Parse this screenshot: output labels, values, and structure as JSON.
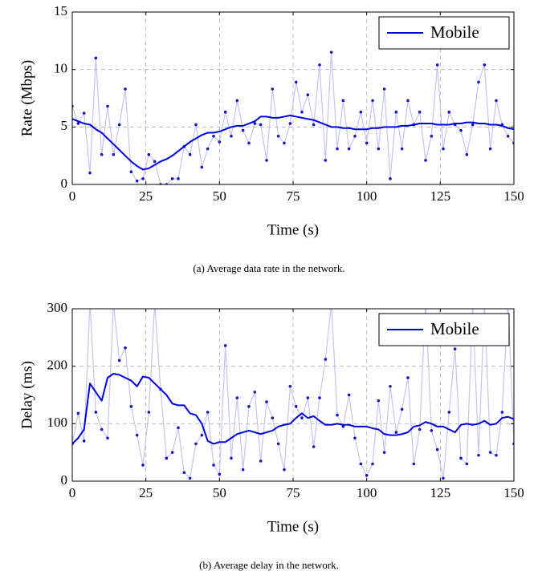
{
  "chart_data": [
    {
      "type": "line",
      "caption": "(a) Average data rate in the network.",
      "xlabel": "Time (s)",
      "ylabel": "Rate (Mbps)",
      "x": [
        0,
        2,
        4,
        6,
        8,
        10,
        12,
        14,
        16,
        18,
        20,
        22,
        24,
        26,
        28,
        30,
        32,
        34,
        36,
        38,
        40,
        42,
        44,
        46,
        48,
        50,
        52,
        54,
        56,
        58,
        60,
        62,
        64,
        66,
        68,
        70,
        72,
        74,
        76,
        78,
        80,
        82,
        84,
        86,
        88,
        90,
        92,
        94,
        96,
        98,
        100,
        102,
        104,
        106,
        108,
        110,
        112,
        114,
        116,
        118,
        120,
        122,
        124,
        126,
        128,
        130,
        132,
        134,
        136,
        138,
        140,
        142,
        144,
        146,
        148,
        150
      ],
      "series": [
        {
          "color": "#c4c4ee",
          "marker_color": "#1414c8",
          "values": [
            6.8,
            5.3,
            6.2,
            1.0,
            11.0,
            2.6,
            6.8,
            2.6,
            5.2,
            8.3,
            1.1,
            0.3,
            0.5,
            2.6,
            2.0,
            0,
            0,
            0.5,
            0.5,
            3.3,
            2.6,
            5.2,
            1.5,
            3.1,
            4.2,
            3.7,
            6.3,
            4.2,
            7.3,
            4.7,
            3.6,
            5.3,
            5.2,
            2.1,
            8.3,
            4.2,
            3.6,
            5.3,
            8.9,
            6.3,
            7.8,
            5.2,
            10.4,
            2.1,
            11.5,
            3.1,
            7.3,
            3.1,
            4.2,
            6.3,
            3.6,
            7.3,
            3.1,
            8.3,
            0.5,
            6.3,
            3.1,
            7.3,
            5.2,
            6.3,
            2.1,
            4.2,
            10.4,
            3.1,
            6.3,
            5.2,
            4.7,
            2.6,
            5.2,
            8.9,
            10.4,
            3.1,
            7.3,
            5.2,
            4.2,
            3.6
          ]
        },
        {
          "name": "Mobile",
          "color": "#0000e0",
          "values": [
            5.7,
            5.5,
            5.3,
            5.2,
            4.8,
            4.5,
            4.0,
            3.5,
            3.0,
            2.5,
            2.0,
            1.6,
            1.3,
            1.4,
            1.7,
            2.0,
            2.2,
            2.5,
            2.9,
            3.3,
            3.7,
            4.0,
            4.3,
            4.5,
            4.5,
            4.6,
            4.8,
            5.0,
            5.1,
            5.1,
            5.3,
            5.5,
            5.9,
            5.9,
            5.8,
            5.8,
            5.9,
            6.0,
            5.9,
            5.8,
            5.7,
            5.6,
            5.4,
            5.2,
            5.0,
            5.0,
            4.9,
            4.9,
            4.8,
            4.8,
            4.8,
            4.9,
            4.9,
            5.0,
            5.0,
            5.0,
            5.1,
            5.1,
            5.2,
            5.3,
            5.3,
            5.3,
            5.2,
            5.2,
            5.2,
            5.3,
            5.3,
            5.4,
            5.4,
            5.3,
            5.3,
            5.2,
            5.2,
            5.1,
            4.9,
            4.8
          ]
        }
      ],
      "xlim": [
        0,
        150
      ],
      "xticks": [
        0,
        25,
        50,
        75,
        100,
        125,
        150
      ],
      "ylim": [
        0,
        15
      ],
      "yticks": [
        0,
        5,
        10,
        15
      ],
      "grid": true,
      "legend": "upper right"
    },
    {
      "type": "line",
      "caption": "(b) Average delay in the network.",
      "xlabel": "Time (s)",
      "ylabel": "Delay (ms)",
      "x": [
        0,
        2,
        4,
        6,
        8,
        10,
        12,
        14,
        16,
        18,
        20,
        22,
        24,
        26,
        28,
        30,
        32,
        34,
        36,
        38,
        40,
        42,
        44,
        46,
        48,
        50,
        52,
        54,
        56,
        58,
        60,
        62,
        64,
        66,
        68,
        70,
        72,
        74,
        76,
        78,
        80,
        82,
        84,
        86,
        88,
        90,
        92,
        94,
        96,
        98,
        100,
        102,
        104,
        106,
        108,
        110,
        112,
        114,
        116,
        118,
        120,
        122,
        124,
        126,
        128,
        130,
        132,
        134,
        136,
        138,
        140,
        142,
        144,
        146,
        148,
        150
      ],
      "series": [
        {
          "color": "#c4c4ee",
          "marker_color": "#1414c8",
          "values": [
            65,
            118,
            70,
            310,
            120,
            90,
            75,
            310,
            210,
            232,
            130,
            80,
            28,
            120,
            310,
            160,
            40,
            50,
            93,
            15,
            5,
            65,
            80,
            120,
            28,
            12,
            236,
            40,
            145,
            20,
            130,
            155,
            35,
            138,
            110,
            65,
            20,
            165,
            130,
            110,
            145,
            60,
            145,
            212,
            310,
            115,
            95,
            150,
            75,
            30,
            10,
            30,
            140,
            50,
            165,
            85,
            125,
            180,
            30,
            90,
            310,
            88,
            55,
            5,
            120,
            230,
            40,
            30,
            310,
            45,
            310,
            50,
            45,
            120,
            310,
            65
          ]
        },
        {
          "name": "Mobile",
          "color": "#0000e0",
          "values": [
            65,
            75,
            90,
            170,
            155,
            140,
            180,
            187,
            185,
            180,
            175,
            165,
            182,
            180,
            170,
            160,
            150,
            135,
            132,
            132,
            118,
            115,
            100,
            70,
            65,
            68,
            68,
            75,
            82,
            85,
            88,
            85,
            82,
            85,
            88,
            95,
            98,
            100,
            110,
            118,
            110,
            113,
            105,
            98,
            98,
            100,
            98,
            98,
            95,
            95,
            95,
            92,
            90,
            82,
            80,
            80,
            82,
            85,
            95,
            97,
            103,
            100,
            95,
            95,
            90,
            85,
            98,
            100,
            98,
            100,
            105,
            98,
            100,
            110,
            112,
            108
          ]
        }
      ],
      "xlim": [
        0,
        150
      ],
      "xticks": [
        0,
        25,
        50,
        75,
        100,
        125,
        150
      ],
      "ylim": [
        0,
        300
      ],
      "yticks": [
        0,
        100,
        200,
        300
      ],
      "grid": true,
      "legend": "upper right"
    }
  ]
}
